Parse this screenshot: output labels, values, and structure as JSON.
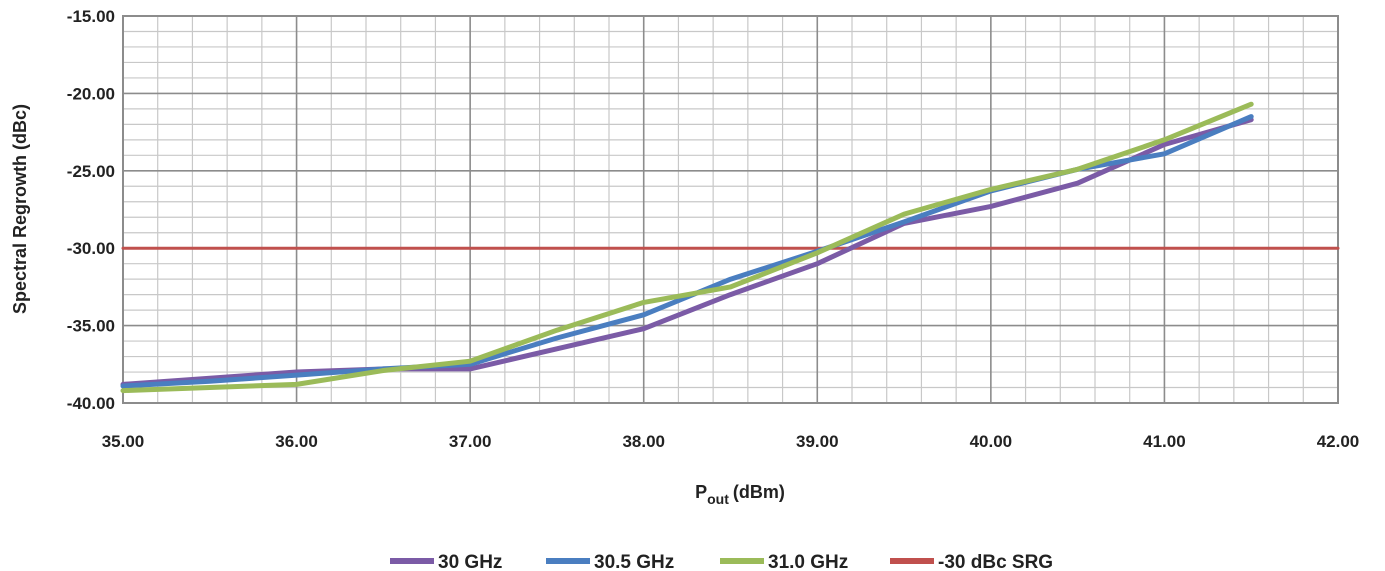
{
  "chart_data": {
    "type": "line",
    "xlabel_main": "P",
    "xlabel_sub": "out",
    "xlabel_unit": "(dBm)",
    "ylabel": "Spectral Regrowth (dBc)",
    "xlim": [
      35,
      42
    ],
    "ylim": [
      -40,
      -15
    ],
    "x_ticks": [
      "35.00",
      "36.00",
      "37.00",
      "38.00",
      "39.00",
      "40.00",
      "41.00",
      "42.00"
    ],
    "y_ticks": [
      "-15.00",
      "-20.00",
      "-25.00",
      "-30.00",
      "-35.00",
      "-40.00"
    ],
    "x_tick_values": [
      35,
      36,
      37,
      38,
      39,
      40,
      41,
      42
    ],
    "y_tick_values": [
      -15,
      -20,
      -25,
      -30,
      -35,
      -40
    ],
    "grid": "major and minor",
    "legend_position": "bottom",
    "series": [
      {
        "name": "30 GHz",
        "color": "#7B5BA6",
        "x": [
          35.0,
          35.5,
          36.0,
          36.5,
          37.0,
          37.5,
          38.0,
          38.5,
          39.0,
          39.5,
          40.0,
          40.5,
          41.0,
          41.5
        ],
        "y": [
          -38.8,
          -38.4,
          -38.0,
          -37.8,
          -37.8,
          -36.5,
          -35.2,
          -33.0,
          -31.0,
          -28.4,
          -27.3,
          -25.8,
          -23.3,
          -21.7
        ]
      },
      {
        "name": "30.5 GHz",
        "color": "#4A7EC0",
        "x": [
          35.0,
          35.5,
          36.0,
          36.5,
          37.0,
          37.5,
          38.0,
          38.5,
          39.0,
          39.5,
          40.0,
          40.5,
          41.0,
          41.5
        ],
        "y": [
          -38.9,
          -38.6,
          -38.2,
          -37.8,
          -37.5,
          -35.8,
          -34.3,
          -32.0,
          -30.2,
          -28.3,
          -26.3,
          -24.9,
          -23.9,
          -21.5
        ]
      },
      {
        "name": "31.0 GHz",
        "color": "#9BBB59",
        "x": [
          35.0,
          35.5,
          36.0,
          36.5,
          37.0,
          37.5,
          38.0,
          38.5,
          39.0,
          39.5,
          40.0,
          40.5,
          41.0,
          41.5
        ],
        "y": [
          -39.2,
          -39.0,
          -38.8,
          -37.9,
          -37.3,
          -35.3,
          -33.5,
          -32.5,
          -30.3,
          -27.8,
          -26.2,
          -24.9,
          -23.0,
          -20.7
        ]
      },
      {
        "name": "-30 dBc SRG",
        "color": "#C0504D",
        "x": [
          35.0,
          42.0
        ],
        "y": [
          -30.0,
          -30.0
        ]
      }
    ]
  }
}
